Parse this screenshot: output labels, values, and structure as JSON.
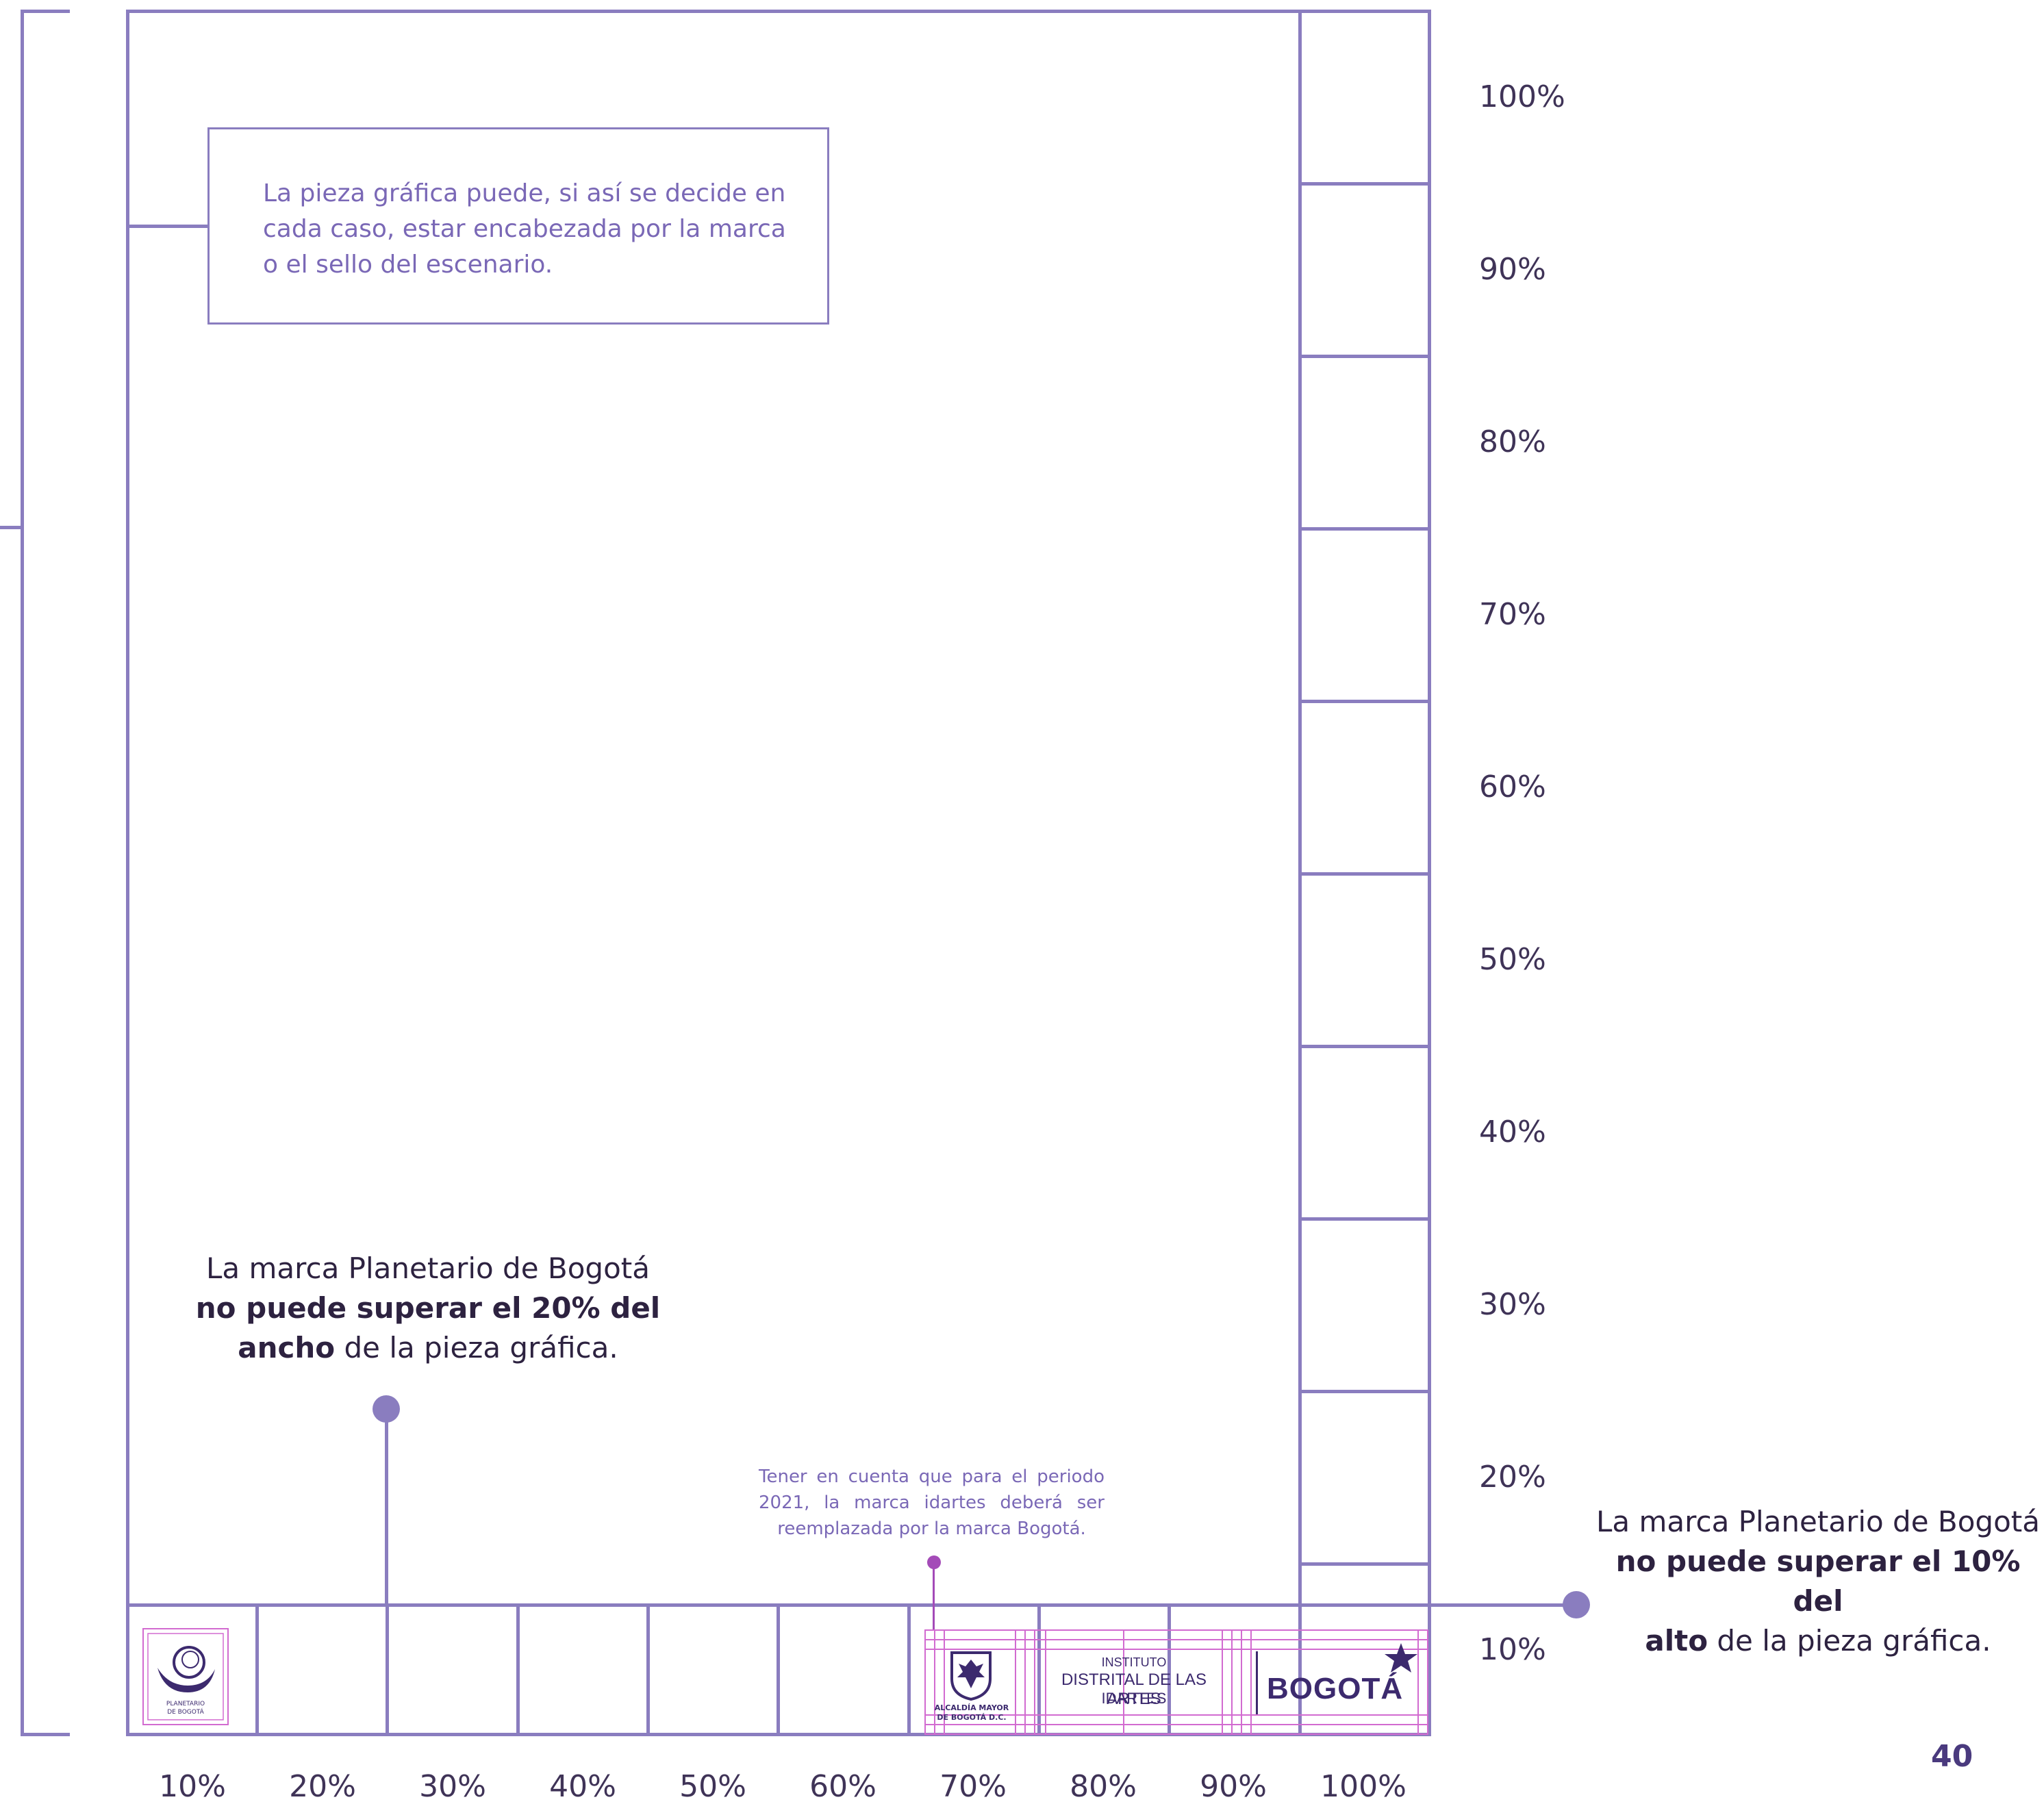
{
  "note_box": {
    "text": "La pieza gráfica puede, si así se decide en cada caso, estar encabezada por la marca o el sello del escenario."
  },
  "callout_width": {
    "line1": "La marca Planetario de Bogotá",
    "bold": "no puede superar el 20% del",
    "bold2": "ancho",
    "rest": " de la pieza gráfica."
  },
  "callout_height": {
    "line1": "La marca Planetario de Bogotá",
    "bold": "no puede superar el 10% del",
    "bold2": "alto",
    "rest": " de la pieza gráfica."
  },
  "small_note": {
    "text": "Tener en cuenta que para el periodo 2021, la marca idartes deberá ser reemplazada por la marca Bogotá."
  },
  "y_axis_labels": [
    "100%",
    "90%",
    "80%",
    "70%",
    "60%",
    "50%",
    "40%",
    "30%",
    "20%",
    "10%"
  ],
  "x_axis_labels": [
    "10%",
    "20%",
    "30%",
    "40%",
    "50%",
    "60%",
    "70%",
    "80%",
    "90%",
    "100%"
  ],
  "logos": {
    "planetario_line1": "PLANETARIO",
    "planetario_line2": "DE BOGOTÁ",
    "alcaldia_line1": "ALCALDÍA MAYOR",
    "alcaldia_line2": "DE BOGOTÁ D.C.",
    "idartes_line1": "INSTITUTO",
    "idartes_line2": "DISTRITAL DE LAS ARTES",
    "idartes_line3": "IDARTES",
    "bogota": "BOGOTÁ"
  },
  "page_number": "40",
  "colors": {
    "frame": "#8A7DBF",
    "text_dark": "#2D2240",
    "text_purple": "#7A68B6",
    "guide_magenta": "#D26BD0",
    "logo_dark": "#3C2A6E"
  }
}
